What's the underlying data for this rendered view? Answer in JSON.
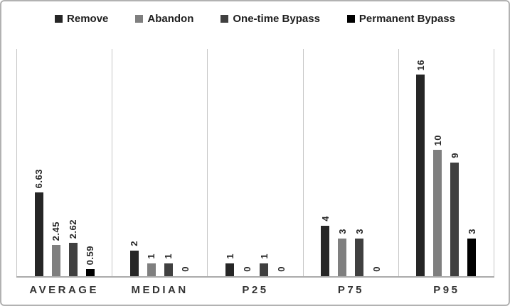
{
  "chart_data": {
    "type": "bar",
    "title": "",
    "xlabel": "",
    "ylabel": "",
    "categories": [
      "AVERAGE",
      "MEDIAN",
      "P25",
      "P75",
      "P95"
    ],
    "series": [
      {
        "name": "Remove",
        "color": "#262626",
        "values": [
          6.63,
          2,
          1,
          4,
          16
        ]
      },
      {
        "name": "Abandon",
        "color": "#7f7f7f",
        "values": [
          2.45,
          1,
          0,
          3,
          10
        ]
      },
      {
        "name": "One-time Bypass",
        "color": "#404040",
        "values": [
          2.62,
          1,
          1,
          3,
          9
        ]
      },
      {
        "name": "Permanent Bypass",
        "color": "#000000",
        "values": [
          0.59,
          0,
          0,
          0,
          3
        ]
      }
    ],
    "ylim": [
      0,
      18
    ],
    "grid": false,
    "axis_visible": false,
    "legend_position": "top",
    "data_label_rotation": "90-ccw-bottom-to-top"
  }
}
